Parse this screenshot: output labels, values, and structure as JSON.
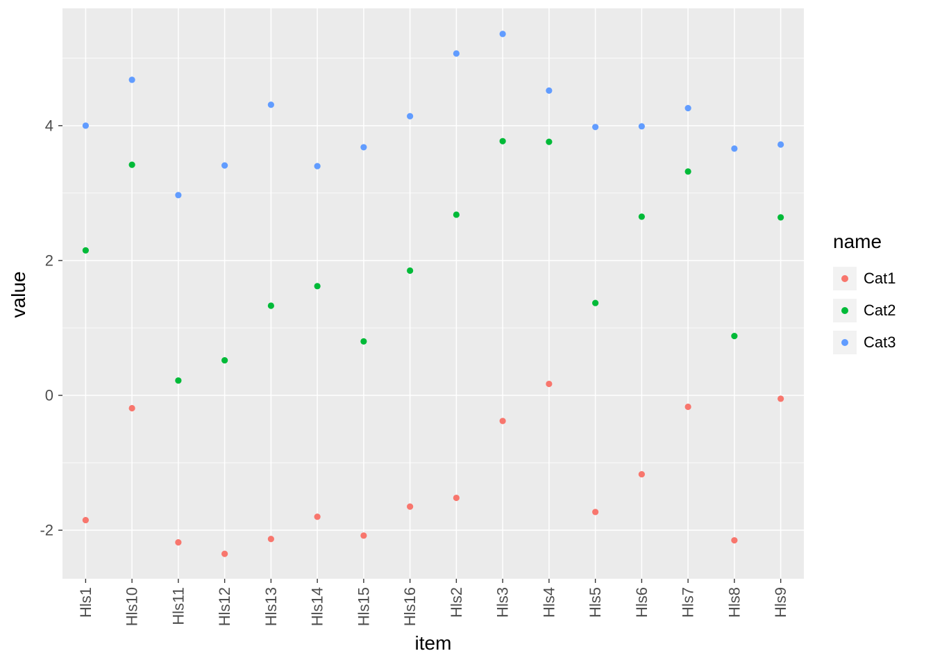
{
  "chart_data": {
    "type": "scatter",
    "title": "",
    "xlabel": "item",
    "ylabel": "value",
    "legend_title": "name",
    "legend_position": "right",
    "grid": true,
    "categories": [
      "Hls1",
      "Hls10",
      "Hls11",
      "Hls12",
      "Hls13",
      "Hls14",
      "Hls15",
      "Hls16",
      "Hls2",
      "Hls3",
      "Hls4",
      "Hls5",
      "Hls6",
      "Hls7",
      "Hls8",
      "Hls9"
    ],
    "series": [
      {
        "name": "Cat1",
        "color": "#F8766D",
        "values": [
          -1.85,
          -0.19,
          -2.18,
          -2.35,
          -2.13,
          -1.8,
          -2.08,
          -1.65,
          -1.52,
          -0.38,
          0.17,
          -1.73,
          -1.17,
          -0.17,
          -2.15,
          -0.05
        ]
      },
      {
        "name": "Cat2",
        "color": "#00BA38",
        "values": [
          2.15,
          3.42,
          0.22,
          0.52,
          1.33,
          1.62,
          0.8,
          1.85,
          2.68,
          3.77,
          3.76,
          1.37,
          2.65,
          3.32,
          0.88,
          2.64
        ]
      },
      {
        "name": "Cat3",
        "color": "#619CFF",
        "values": [
          4.0,
          4.68,
          2.97,
          3.41,
          4.31,
          3.4,
          3.68,
          4.14,
          5.07,
          5.36,
          4.52,
          3.98,
          3.99,
          4.26,
          3.66,
          3.72
        ]
      }
    ],
    "ylim": [
      -2.72,
      5.74
    ],
    "yticks": [
      -2,
      0,
      2,
      4
    ],
    "yminor": [
      -1,
      1,
      3,
      5
    ],
    "panel_background": "#EBEBEB",
    "grid_color": "#FFFFFF",
    "axis_text_color": "#4D4D4D",
    "tick_color": "#333333"
  }
}
